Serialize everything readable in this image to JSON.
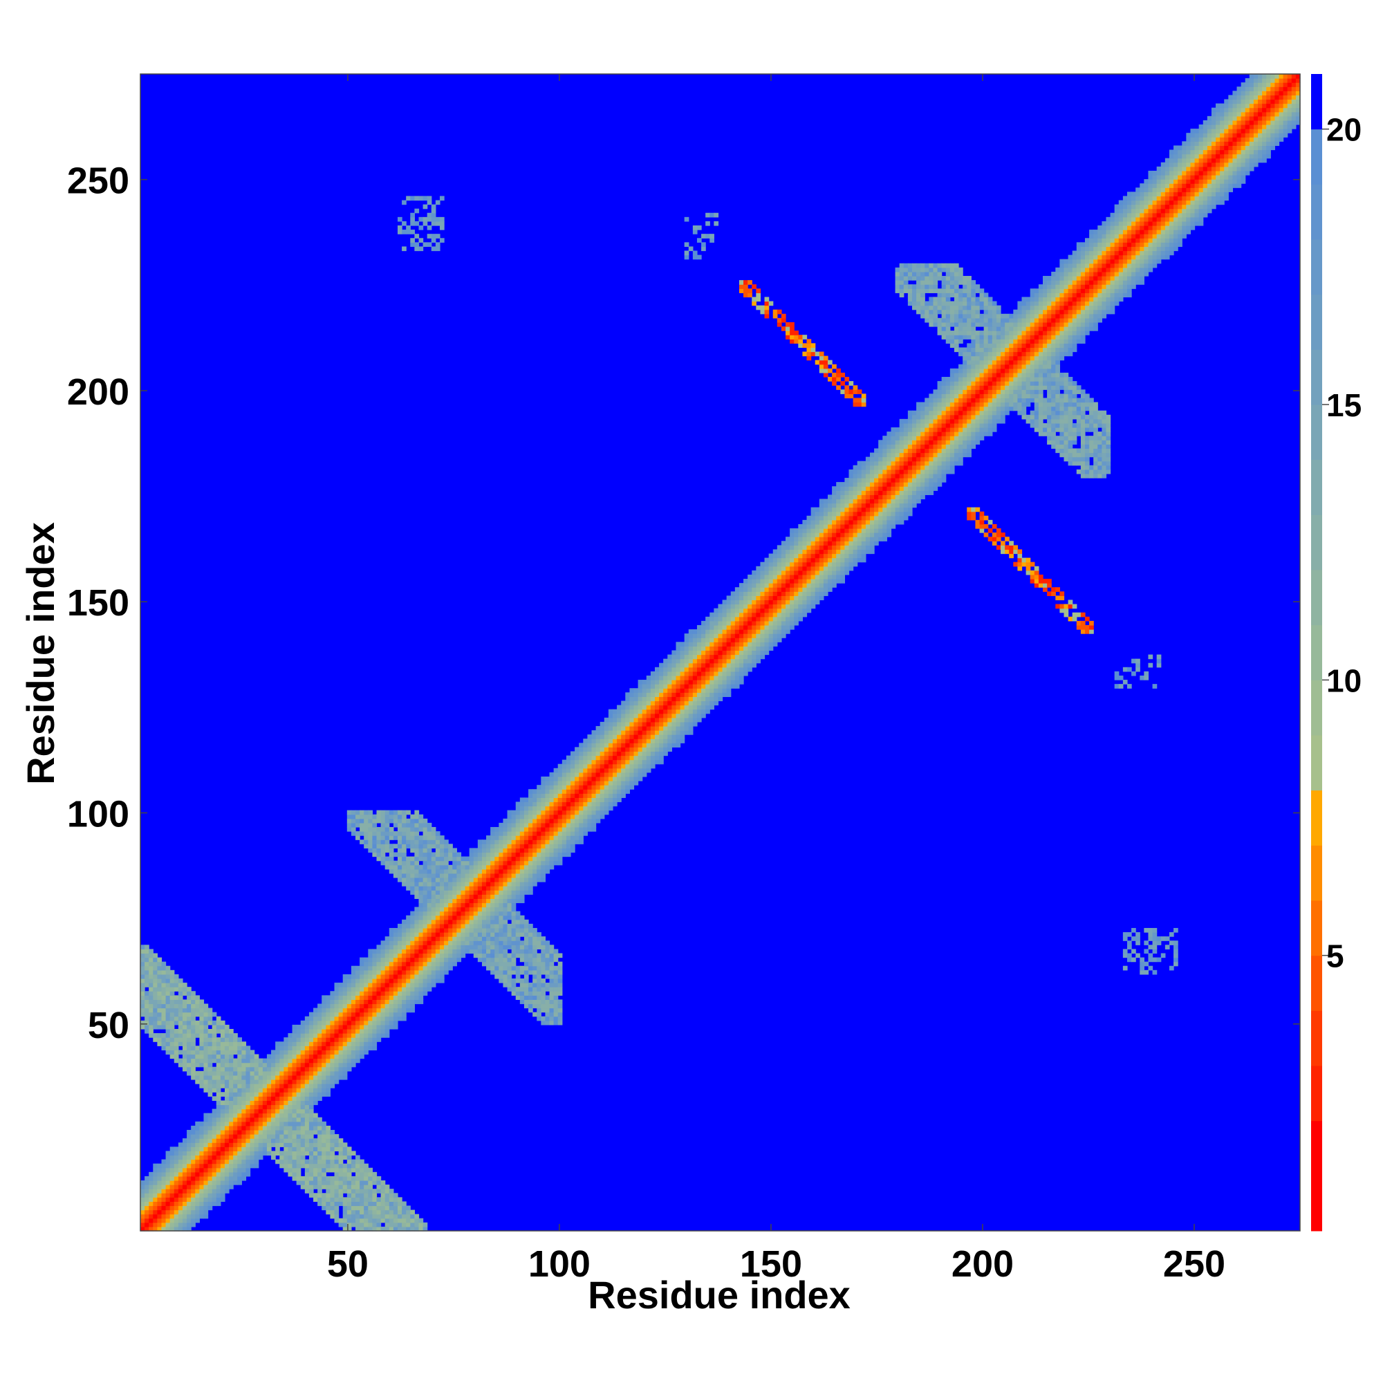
{
  "chart_data": {
    "type": "heatmap",
    "title": "",
    "xlabel": "Residue index",
    "ylabel": "Residue index",
    "xlim": [
      1,
      275
    ],
    "ylim": [
      1,
      275
    ],
    "x_ticks": [
      50,
      100,
      150,
      200,
      250
    ],
    "y_ticks": [
      50,
      100,
      150,
      200,
      250
    ],
    "colorbar": {
      "range": [
        0,
        21
      ],
      "ticks": [
        5,
        10,
        15,
        20
      ],
      "levels": [
        {
          "to": 2,
          "color": "#ff0000"
        },
        {
          "to": 3,
          "color": "#ff2400"
        },
        {
          "to": 4,
          "color": "#ff3a00"
        },
        {
          "to": 5,
          "color": "#ff5500"
        },
        {
          "to": 6,
          "color": "#ff7000"
        },
        {
          "to": 7,
          "color": "#ff8c00"
        },
        {
          "to": 8,
          "color": "#ffa800"
        },
        {
          "to": 9,
          "color": "#a7c08c"
        },
        {
          "to": 10,
          "color": "#9fbd93"
        },
        {
          "to": 11,
          "color": "#97b99a"
        },
        {
          "to": 12,
          "color": "#8fb4a1"
        },
        {
          "to": 13,
          "color": "#88afa8"
        },
        {
          "to": 14,
          "color": "#81abaf"
        },
        {
          "to": 15,
          "color": "#7aa6b6"
        },
        {
          "to": 16,
          "color": "#73a1bd"
        },
        {
          "to": 17,
          "color": "#6c9cc3"
        },
        {
          "to": 18,
          "color": "#6698c9"
        },
        {
          "to": 19,
          "color": "#6093ce"
        },
        {
          "to": 20,
          "color": "#5a8fd3"
        },
        {
          "to": 21,
          "color": "#0000ff"
        }
      ]
    },
    "matrix_size": 275,
    "description_grid": "symmetric residue distance map; values >= 20 shown blue",
    "diagonal_band": {
      "core_value": 1,
      "half_width": 12
    },
    "contact_regions": [
      {
        "x": [
          1,
          70
        ],
        "y": [
          1,
          70
        ],
        "orientation": "anti-diagonal",
        "center": [
          30,
          30
        ],
        "value": 14
      },
      {
        "x": [
          50,
          100
        ],
        "y": [
          50,
          100
        ],
        "orientation": "anti-diagonal",
        "center": [
          77,
          79
        ],
        "value": 16
      },
      {
        "x": [
          180,
          230
        ],
        "y": [
          180,
          230
        ],
        "orientation": "anti-diagonal",
        "center": [
          207,
          207
        ],
        "value": 16
      },
      {
        "x": [
          143,
          172
        ],
        "y": [
          197,
          226
        ],
        "orientation": "anti-diagonal-strand",
        "value": 6
      },
      {
        "x": [
          197,
          226
        ],
        "y": [
          143,
          172
        ],
        "orientation": "anti-diagonal-strand",
        "value": 6
      },
      {
        "x": [
          62,
          72
        ],
        "y": [
          234,
          246
        ],
        "orientation": "patch",
        "value": 18
      },
      {
        "x": [
          234,
          246
        ],
        "y": [
          62,
          72
        ],
        "orientation": "patch",
        "value": 18
      },
      {
        "x": [
          130,
          137
        ],
        "y": [
          232,
          242
        ],
        "orientation": "patch",
        "value": 18
      },
      {
        "x": [
          232,
          242
        ],
        "y": [
          130,
          137
        ],
        "orientation": "patch",
        "value": 18
      }
    ]
  }
}
